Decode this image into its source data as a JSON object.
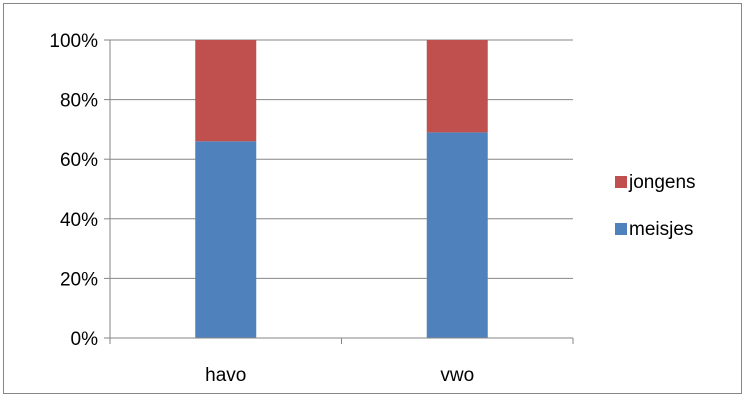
{
  "chart_data": {
    "type": "bar",
    "stacked": true,
    "percent_stacked": true,
    "categories": [
      "havo",
      "vwo"
    ],
    "series": [
      {
        "name": "meisjes",
        "values": [
          66,
          69
        ],
        "color": "#4f81bd"
      },
      {
        "name": "jongens",
        "values": [
          34,
          31
        ],
        "color": "#c0504d"
      }
    ],
    "y_ticks": [
      "0%",
      "20%",
      "40%",
      "60%",
      "80%",
      "100%"
    ],
    "ylim": [
      0,
      100
    ],
    "grid": true,
    "legend_position": "right",
    "legend_order": [
      "jongens",
      "meisjes"
    ]
  }
}
